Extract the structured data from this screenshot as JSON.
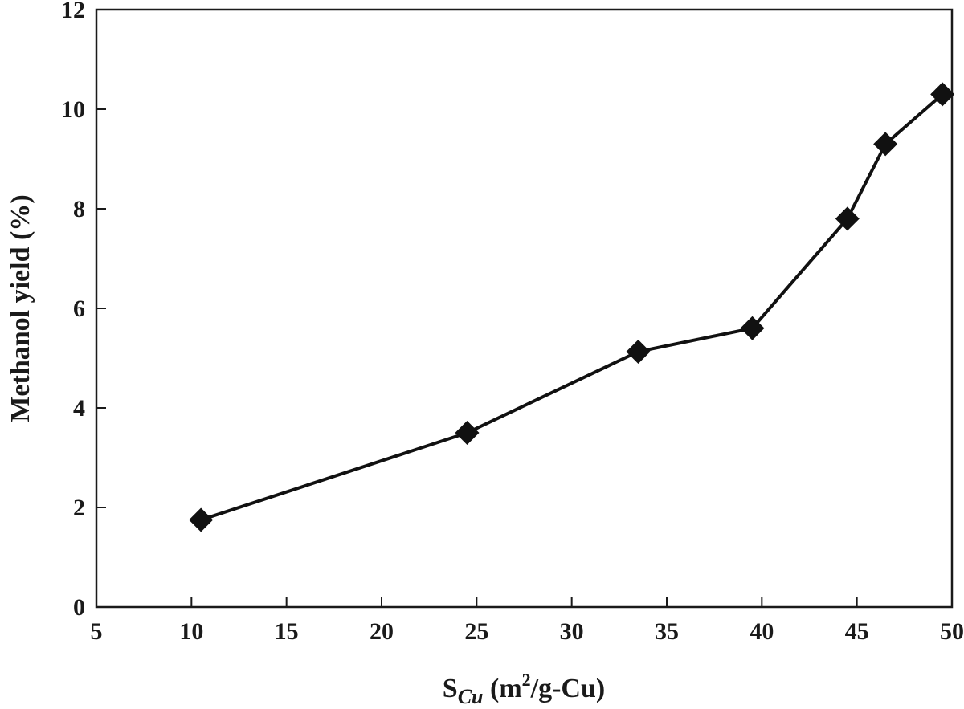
{
  "chart_data": {
    "type": "line",
    "title": "",
    "xlabel": {
      "main": "S",
      "subscript": "Cu",
      "unit_open": " (m",
      "unit_sup": "2",
      "unit_close": "/g-Cu)"
    },
    "ylabel": "Methanol yield (%)",
    "xlim": [
      5,
      50
    ],
    "ylim": [
      0,
      12
    ],
    "xticks": [
      5,
      10,
      15,
      20,
      25,
      30,
      35,
      40,
      45,
      50
    ],
    "yticks": [
      0,
      2,
      4,
      6,
      8,
      10,
      12
    ],
    "grid": false,
    "legend": "none",
    "marker": "diamond",
    "color": "#111111",
    "series": [
      {
        "x": [
          10.5,
          24.5,
          33.5,
          39.5,
          44.5,
          46.5,
          49.5
        ],
        "y": [
          1.75,
          3.5,
          5.13,
          5.6,
          7.8,
          9.3,
          10.3
        ]
      }
    ]
  }
}
